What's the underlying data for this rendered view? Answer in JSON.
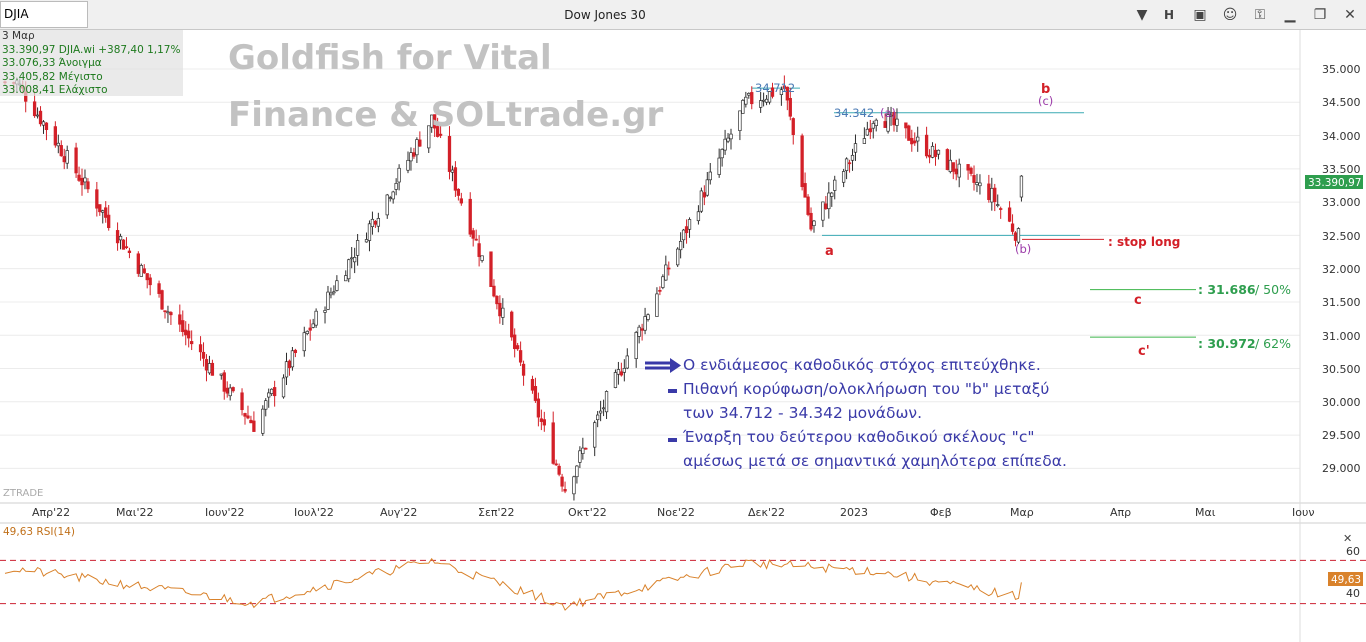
{
  "window": {
    "symbol": "DJIA",
    "title": "Dow Jones 30",
    "toolbar_letter": "H",
    "icons": [
      "chevron-down-icon",
      "h-icon",
      "window-icon",
      "comment-icon",
      "lock-icon",
      "minimize-icon",
      "restore-icon",
      "close-icon"
    ]
  },
  "info": {
    "date": "3 Μαρ",
    "last": "33.390,97 DJIA.wi +387,40 1,17%",
    "open": "33.076,33 Άνοιγμα",
    "high": "33.405,82 Μέγιστο",
    "low": "33.008,41 Ελάχιστο"
  },
  "watermark": {
    "line1": "Goldfish for Vital",
    "line2": "Finance & SOLtrade.gr"
  },
  "brand_small": "ZTRADE",
  "price_axis": {
    "ticks": [
      "35.000",
      "34.500",
      "34.000",
      "33.500",
      "33.000",
      "32.500",
      "32.000",
      "31.500",
      "31.000",
      "30.500",
      "30.000",
      "29.500",
      "29.000"
    ],
    "last_badge": "33.390,97"
  },
  "time_axis": [
    "Απρ'22",
    "Μαι'22",
    "Ιουν'22",
    "Ιουλ'22",
    "Αυγ'22",
    "Σεπ'22",
    "Οκτ'22",
    "Νοε'22",
    "Δεκ'22",
    "2023",
    "Φεβ",
    "Μαρ",
    "Απρ",
    "Μαι",
    "Ιουν"
  ],
  "levels": {
    "top_label": "34.712",
    "mid_label": "34.342",
    "a_label": "(a)",
    "wave_a": "a",
    "wave_b": "b",
    "wave_c_small": "(c)",
    "wave_b_small": "(b)",
    "stop_text": ": stop long",
    "c_label": "c",
    "c2_label": "c'",
    "target1": ": 31.686",
    "target1_pct": "/ 50%",
    "target2": ": 30.972",
    "target2_pct": "/ 62%"
  },
  "annotations": {
    "line1": "Ο ενδιάμεσος καθοδικός στόχος επιτεύχθηκε.",
    "line2": "Πιθανή κορύφωση/ολοκλήρωση του \"b\"  μεταξύ",
    "line3": "των 34.712 - 34.342 μονάδων.",
    "line4": "Έναρξη του δεύτερου καθοδικού σκέλους \"c\"",
    "line5": "αμέσως μετά σε σημαντικά χαμηλότερα επίπεδα."
  },
  "rsi": {
    "label": "49,63 RSI(14)",
    "ticks": [
      "60",
      "40"
    ],
    "last_badge": "49,63",
    "upper": 70,
    "lower": 30
  },
  "colors": {
    "up": "#2d2d2d",
    "down": "#d32028",
    "level_line": "#3aaab4",
    "target_line": "#3cb54a",
    "rsi_line": "#d9822b",
    "badge": "#2e9e4e",
    "annotation": "#3a3aa8",
    "wave": "#d32028",
    "wave_small": "#9b3aa8"
  },
  "chart_data": {
    "type": "candlestick",
    "title": "Dow Jones 30",
    "y_range": [
      28600,
      35300
    ],
    "x_range": [
      "2022-03-24",
      "2023-06-05"
    ],
    "key_points": [
      {
        "date": "2022-03-29",
        "value": 34800
      },
      {
        "date": "2022-05-20",
        "value": 31300
      },
      {
        "date": "2022-06-17",
        "value": 29650
      },
      {
        "date": "2022-08-16",
        "value": 34250
      },
      {
        "date": "2022-09-30",
        "value": 28700
      },
      {
        "date": "2022-11-30",
        "value": 34500
      },
      {
        "date": "2022-12-13",
        "value": 34712
      },
      {
        "date": "2022-12-22",
        "value": 32600
      },
      {
        "date": "2023-01-13",
        "value": 34342
      },
      {
        "date": "2023-02-21",
        "value": 33100
      },
      {
        "date": "2023-03-02",
        "value": 32480
      },
      {
        "date": "2023-03-03",
        "value": 33390.97
      }
    ],
    "horizontal_levels": [
      34712,
      34342,
      32500,
      31686,
      30972
    ],
    "rsi_key_points": [
      {
        "date": "2022-03-29",
        "value": 62
      },
      {
        "date": "2022-06-17",
        "value": 31
      },
      {
        "date": "2022-08-16",
        "value": 70
      },
      {
        "date": "2022-09-30",
        "value": 28
      },
      {
        "date": "2022-11-30",
        "value": 68
      },
      {
        "date": "2023-01-13",
        "value": 60
      },
      {
        "date": "2023-03-02",
        "value": 36
      },
      {
        "date": "2023-03-03",
        "value": 49.63
      }
    ]
  }
}
